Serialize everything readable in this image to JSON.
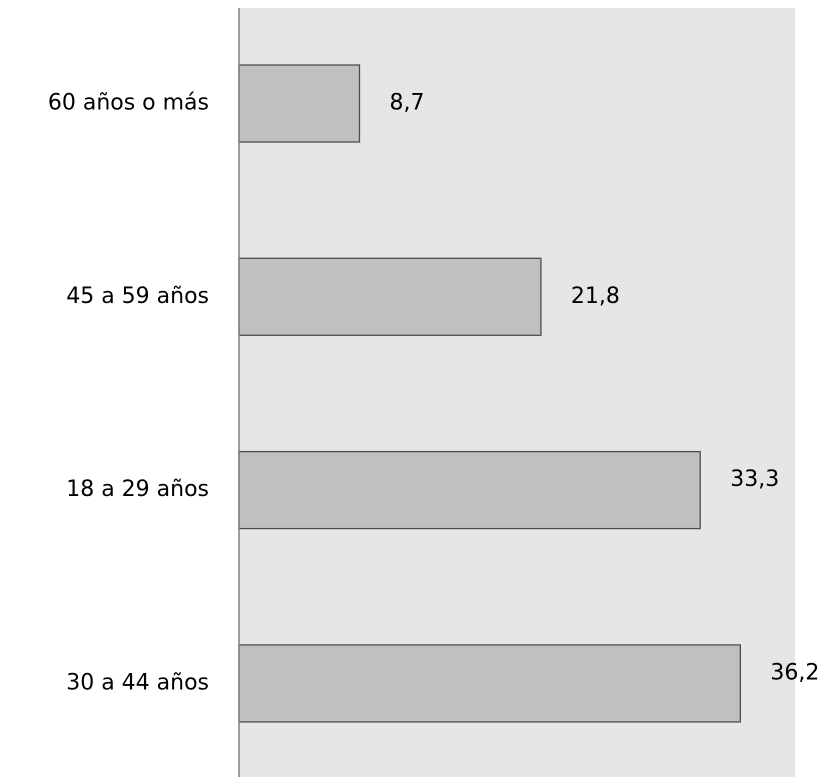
{
  "chart_data": {
    "type": "bar",
    "orientation": "horizontal",
    "categories": [
      "60 años o más",
      "45 a 59 años",
      "18 a 29 años",
      "30 a 44 años"
    ],
    "values": [
      8.7,
      21.8,
      33.3,
      36.2
    ],
    "value_labels": [
      "8,7",
      "21,8",
      "33,3",
      "36,2"
    ],
    "xlim": [
      0,
      40
    ],
    "grid": false,
    "legend": "none",
    "colors": {
      "plot_background": "#e6e6e6",
      "bar_fill": "#c0c0c0",
      "bar_stroke": "#4d4d4d",
      "axis": "#808080"
    }
  }
}
